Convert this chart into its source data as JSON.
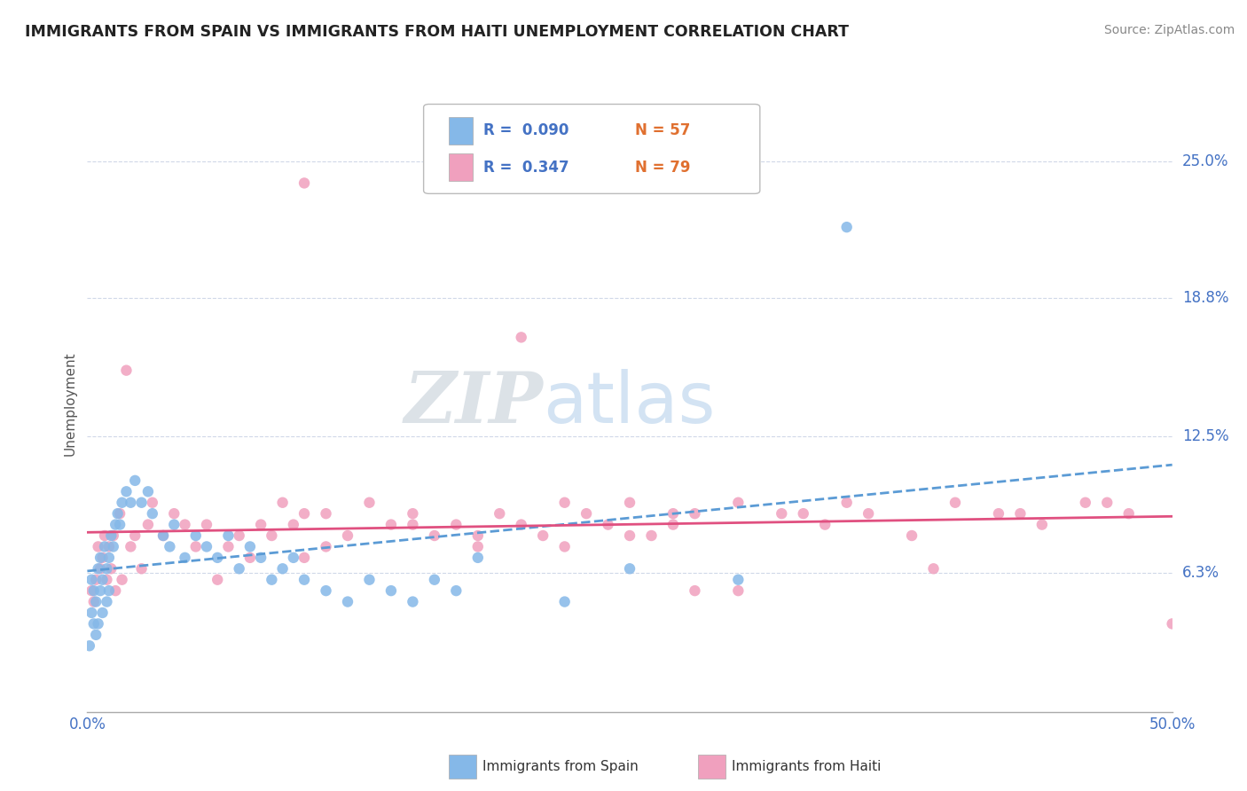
{
  "title": "IMMIGRANTS FROM SPAIN VS IMMIGRANTS FROM HAITI UNEMPLOYMENT CORRELATION CHART",
  "source_text": "Source: ZipAtlas.com",
  "ylabel": "Unemployment",
  "xlim": [
    0.0,
    0.5
  ],
  "ylim": [
    0.0,
    0.28
  ],
  "ytick_positions": [
    0.063,
    0.125,
    0.188,
    0.25
  ],
  "ytick_labels": [
    "6.3%",
    "12.5%",
    "18.8%",
    "25.0%"
  ],
  "background_color": "#ffffff",
  "grid_color": "#d0d8e8",
  "watermark_zip": "ZIP",
  "watermark_atlas": "atlas",
  "spain_color": "#85b8e8",
  "haiti_color": "#f0a0be",
  "spain_trendline_color": "#5b9bd5",
  "haiti_trendline_color": "#e05080",
  "spain_label": "Immigrants from Spain",
  "haiti_label": "Immigrants from Haiti",
  "spain_R": 0.09,
  "spain_N": 57,
  "haiti_R": 0.347,
  "haiti_N": 79,
  "spain_x": [
    0.001,
    0.002,
    0.002,
    0.003,
    0.003,
    0.004,
    0.004,
    0.005,
    0.005,
    0.006,
    0.006,
    0.007,
    0.007,
    0.008,
    0.009,
    0.009,
    0.01,
    0.01,
    0.011,
    0.012,
    0.013,
    0.014,
    0.015,
    0.016,
    0.018,
    0.02,
    0.022,
    0.025,
    0.028,
    0.03,
    0.035,
    0.038,
    0.04,
    0.045,
    0.05,
    0.055,
    0.06,
    0.065,
    0.07,
    0.075,
    0.08,
    0.085,
    0.09,
    0.095,
    0.1,
    0.11,
    0.12,
    0.13,
    0.14,
    0.15,
    0.16,
    0.17,
    0.18,
    0.22,
    0.25,
    0.3,
    0.35
  ],
  "spain_y": [
    0.03,
    0.045,
    0.06,
    0.04,
    0.055,
    0.035,
    0.05,
    0.065,
    0.04,
    0.055,
    0.07,
    0.045,
    0.06,
    0.075,
    0.05,
    0.065,
    0.055,
    0.07,
    0.08,
    0.075,
    0.085,
    0.09,
    0.085,
    0.095,
    0.1,
    0.095,
    0.105,
    0.095,
    0.1,
    0.09,
    0.08,
    0.075,
    0.085,
    0.07,
    0.08,
    0.075,
    0.07,
    0.08,
    0.065,
    0.075,
    0.07,
    0.06,
    0.065,
    0.07,
    0.06,
    0.055,
    0.05,
    0.06,
    0.055,
    0.05,
    0.06,
    0.055,
    0.07,
    0.05,
    0.065,
    0.06,
    0.22
  ],
  "haiti_x": [
    0.002,
    0.003,
    0.004,
    0.005,
    0.006,
    0.007,
    0.008,
    0.009,
    0.01,
    0.011,
    0.012,
    0.013,
    0.015,
    0.016,
    0.018,
    0.02,
    0.022,
    0.025,
    0.028,
    0.03,
    0.035,
    0.04,
    0.045,
    0.05,
    0.055,
    0.06,
    0.065,
    0.07,
    0.075,
    0.08,
    0.085,
    0.09,
    0.095,
    0.1,
    0.1,
    0.11,
    0.11,
    0.12,
    0.13,
    0.14,
    0.15,
    0.16,
    0.17,
    0.18,
    0.19,
    0.2,
    0.21,
    0.22,
    0.23,
    0.24,
    0.25,
    0.26,
    0.27,
    0.28,
    0.3,
    0.32,
    0.34,
    0.36,
    0.38,
    0.4,
    0.42,
    0.44,
    0.46,
    0.48,
    0.5,
    0.3,
    0.35,
    0.2,
    0.25,
    0.33,
    0.28,
    0.15,
    0.18,
    0.22,
    0.27,
    0.1,
    0.43,
    0.47,
    0.39
  ],
  "haiti_y": [
    0.055,
    0.05,
    0.06,
    0.075,
    0.065,
    0.07,
    0.08,
    0.06,
    0.075,
    0.065,
    0.08,
    0.055,
    0.09,
    0.06,
    0.155,
    0.075,
    0.08,
    0.065,
    0.085,
    0.095,
    0.08,
    0.09,
    0.085,
    0.075,
    0.085,
    0.06,
    0.075,
    0.08,
    0.07,
    0.085,
    0.08,
    0.095,
    0.085,
    0.09,
    0.07,
    0.09,
    0.075,
    0.08,
    0.095,
    0.085,
    0.09,
    0.08,
    0.085,
    0.075,
    0.09,
    0.085,
    0.08,
    0.095,
    0.09,
    0.085,
    0.095,
    0.08,
    0.085,
    0.09,
    0.095,
    0.09,
    0.085,
    0.09,
    0.08,
    0.095,
    0.09,
    0.085,
    0.095,
    0.09,
    0.04,
    0.055,
    0.095,
    0.17,
    0.08,
    0.09,
    0.055,
    0.085,
    0.08,
    0.075,
    0.09,
    0.24,
    0.09,
    0.095,
    0.065
  ]
}
